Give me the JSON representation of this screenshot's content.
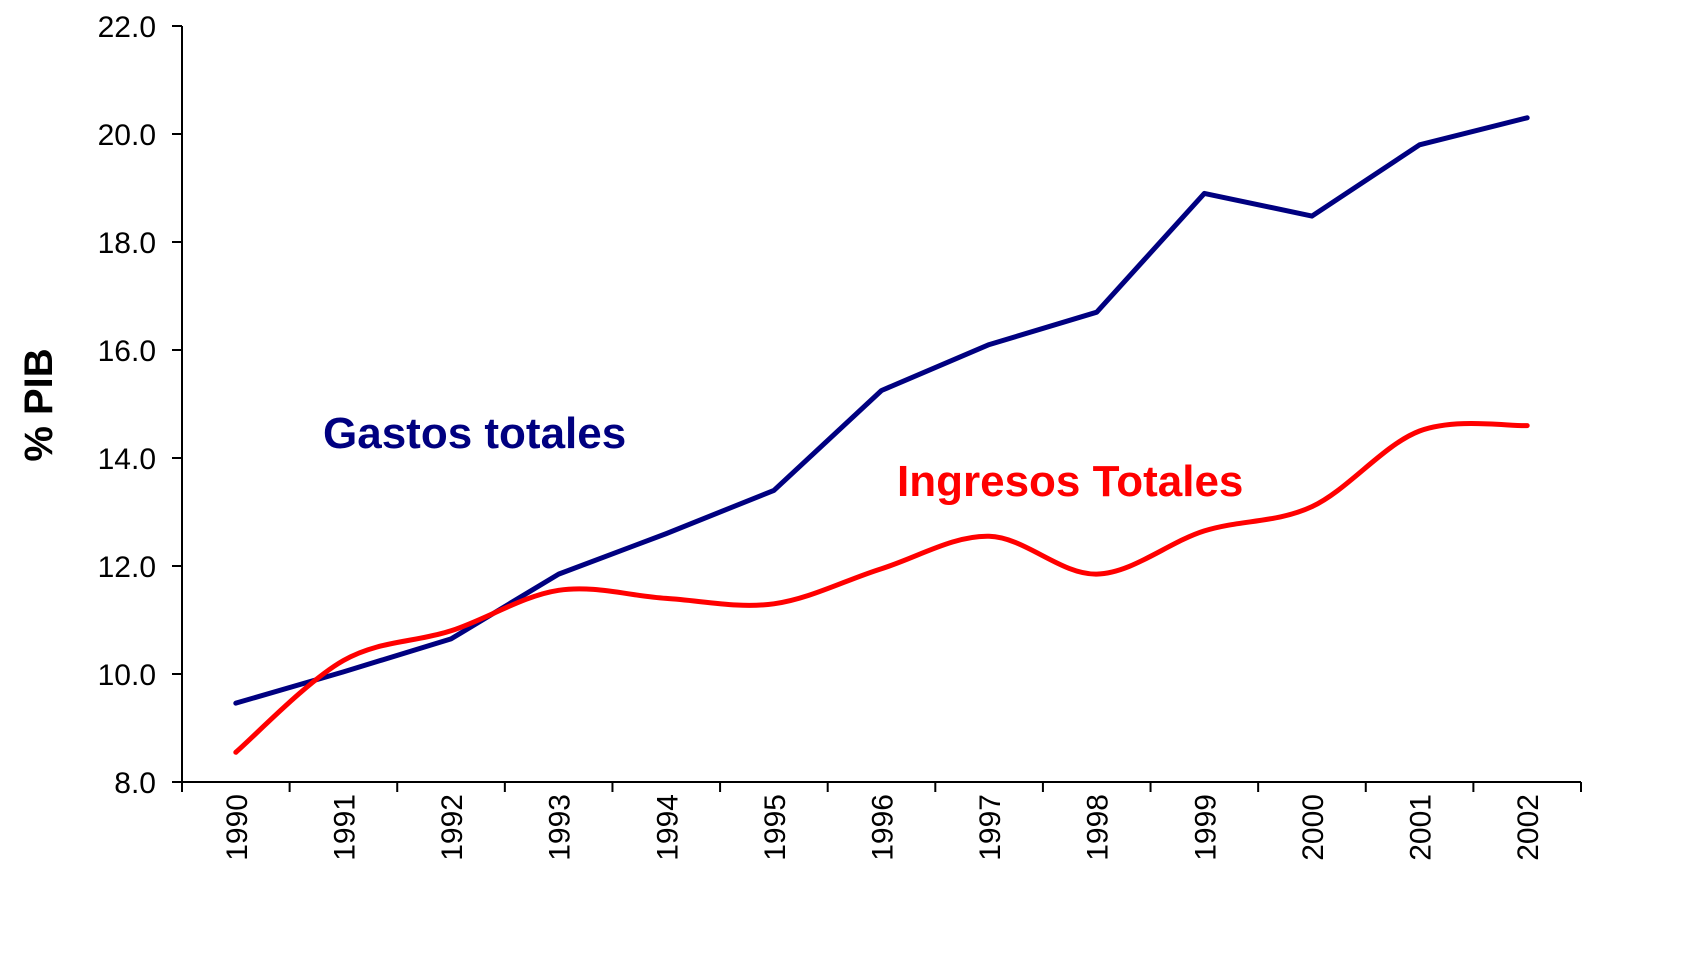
{
  "chart_data": {
    "type": "line",
    "y_label": "% PIB",
    "categories": [
      "1990",
      "1991",
      "1992",
      "1993",
      "1994",
      "1995",
      "1996",
      "1997",
      "1998",
      "1999",
      "2000",
      "2001",
      "2002"
    ],
    "series": [
      {
        "name": "Gastos totales",
        "color": "#000080",
        "values": [
          9.46,
          10.04,
          10.65,
          11.85,
          12.6,
          13.4,
          15.25,
          16.1,
          16.7,
          18.9,
          18.48,
          19.8,
          20.3
        ]
      },
      {
        "name": "Ingresos Totales",
        "color": "#ff0000",
        "values": [
          8.55,
          10.25,
          10.8,
          11.55,
          11.4,
          11.3,
          11.95,
          12.55,
          11.85,
          12.65,
          13.1,
          14.5,
          14.6
        ]
      }
    ],
    "ylim": [
      8,
      22
    ],
    "yticks": [
      {
        "value": 8,
        "label": "8.0"
      },
      {
        "value": 10,
        "label": "10.0"
      },
      {
        "value": 12,
        "label": "12.0"
      },
      {
        "value": 14,
        "label": "14.0"
      },
      {
        "value": 16,
        "label": "16.0"
      },
      {
        "value": 18,
        "label": "18.0"
      },
      {
        "value": 20,
        "label": "20.0"
      },
      {
        "value": 22,
        "label": "22.0"
      }
    ],
    "grid": false
  }
}
